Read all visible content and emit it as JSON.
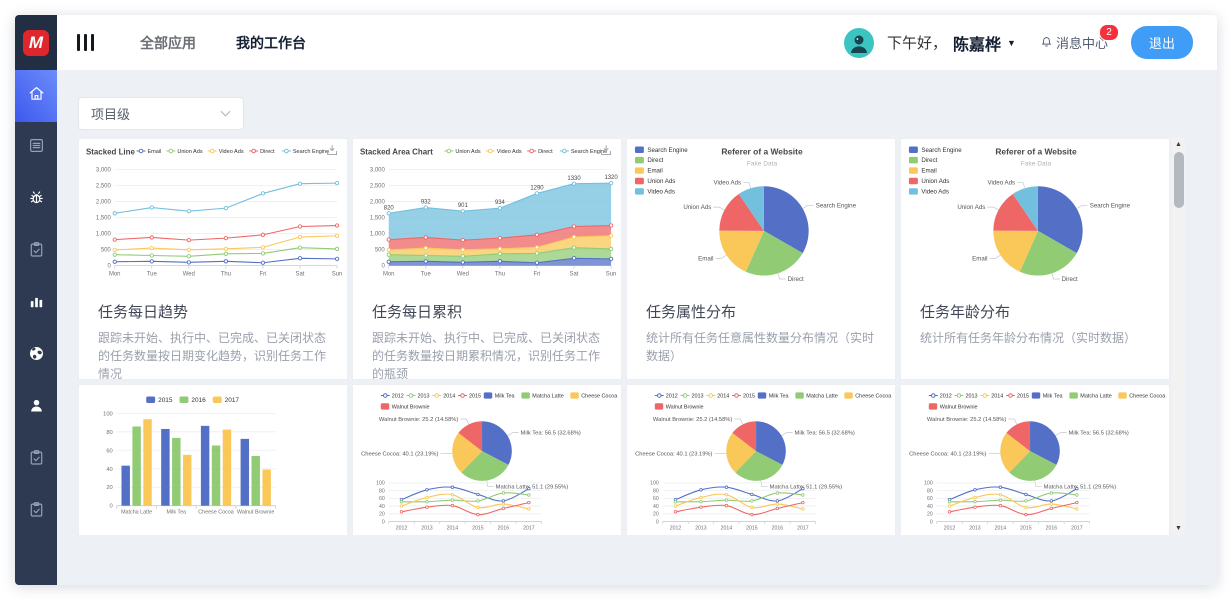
{
  "header": {
    "logo_text": "M",
    "nav": [
      {
        "label": "全部应用",
        "active": false
      },
      {
        "label": "我的工作台",
        "active": true
      }
    ],
    "greeting_prefix": "下午好，",
    "user_name": "陈嘉桦",
    "message_center_label": "消息中心",
    "message_badge": "2",
    "logout_label": "退出"
  },
  "sidebar": {
    "items": [
      {
        "icon": "home-icon",
        "active": true
      },
      {
        "icon": "document-icon"
      },
      {
        "icon": "bug-icon",
        "filled": true
      },
      {
        "icon": "clipboard-check-icon"
      },
      {
        "icon": "bar-chart-icon",
        "filled": true
      },
      {
        "icon": "globe-icon",
        "filled": true
      },
      {
        "icon": "user-icon",
        "filled": true
      },
      {
        "icon": "clipboard-check-icon"
      },
      {
        "icon": "clipboard-check-icon"
      }
    ]
  },
  "filter": {
    "value": "项目级"
  },
  "cards": [
    {
      "title": "任务每日趋势",
      "desc": "跟踪未开始、执行中、已完成、已关闭状态的任务数量按日期变化趋势，识别任务工作情况",
      "chart": 0
    },
    {
      "title": "任务每日累积",
      "desc": "跟踪未开始、执行中、已完成、已关闭状态的任务数量按日期累积情况，识别任务工作的瓶颈",
      "chart": 1
    },
    {
      "title": "任务属性分布",
      "desc": "统计所有任务任意属性数量分布情况（实时数据）",
      "chart": 2
    },
    {
      "title": "任务年龄分布",
      "desc": "统计所有任务年龄分布情况（实时数据）",
      "chart": 2
    },
    {
      "chart": 3
    },
    {
      "chart": 4
    },
    {
      "chart": 4
    },
    {
      "chart": 4
    }
  ],
  "chart_data": [
    {
      "id": "stacked-line",
      "type": "line",
      "title": "Stacked Line",
      "legend": [
        "Email",
        "Union Ads",
        "Video Ads",
        "Direct",
        "Search Engine"
      ],
      "legend_color_start": 0,
      "x": [
        "Mon",
        "Tue",
        "Wed",
        "Thu",
        "Fri",
        "Sat",
        "Sun"
      ],
      "series": [
        {
          "name": "Email",
          "values": [
            120,
            132,
            101,
            134,
            90,
            230,
            210
          ]
        },
        {
          "name": "Union Ads",
          "values": [
            220,
            182,
            191,
            234,
            290,
            330,
            310
          ]
        },
        {
          "name": "Video Ads",
          "values": [
            150,
            232,
            201,
            154,
            190,
            330,
            410
          ]
        },
        {
          "name": "Direct",
          "values": [
            320,
            332,
            301,
            334,
            390,
            330,
            320
          ]
        },
        {
          "name": "Search Engine",
          "values": [
            820,
            932,
            901,
            934,
            1290,
            1330,
            1320
          ]
        }
      ],
      "stacked": true,
      "ylim": [
        0,
        3000
      ],
      "ystep": 500,
      "grid": true,
      "has_save_icon": true
    },
    {
      "id": "stacked-area",
      "type": "area",
      "title": "Stacked Area Chart",
      "legend": [
        "Union Ads",
        "Video Ads",
        "Direct",
        "Search Engine"
      ],
      "legend_color_start": 1,
      "x": [
        "Mon",
        "Tue",
        "Wed",
        "Thu",
        "Fri",
        "Sat",
        "Sun"
      ],
      "series": [
        {
          "name": "Email",
          "values": [
            120,
            132,
            101,
            134,
            90,
            230,
            210
          ]
        },
        {
          "name": "Union Ads",
          "values": [
            220,
            182,
            191,
            234,
            290,
            330,
            310
          ]
        },
        {
          "name": "Video Ads",
          "values": [
            150,
            232,
            201,
            154,
            190,
            330,
            410
          ]
        },
        {
          "name": "Direct",
          "values": [
            320,
            332,
            301,
            334,
            390,
            330,
            320
          ]
        },
        {
          "name": "Search Engine",
          "values": [
            820,
            932,
            901,
            934,
            1290,
            1330,
            1320
          ]
        }
      ],
      "stacked": true,
      "ylim": [
        0,
        3000
      ],
      "ystep": 500,
      "grid": true,
      "top_labels": [
        "820",
        "932",
        "901",
        "934",
        "1290",
        "1330",
        "1320"
      ],
      "has_save_icon": true
    },
    {
      "id": "referer-pie",
      "type": "pie",
      "title": "Referer of a Website",
      "subtitle": "Fake Data",
      "legend": [
        "Search Engine",
        "Direct",
        "Email",
        "Union Ads",
        "Video Ads"
      ],
      "legend_position": "top-left",
      "data": [
        {
          "name": "Search Engine",
          "value": 1048
        },
        {
          "name": "Direct",
          "value": 735
        },
        {
          "name": "Email",
          "value": 580
        },
        {
          "name": "Union Ads",
          "value": 484
        },
        {
          "name": "Video Ads",
          "value": 300
        }
      ]
    },
    {
      "id": "yearly-bar",
      "type": "bar",
      "legend": [
        "2015",
        "2016",
        "2017"
      ],
      "categories": [
        "Matcha Latte",
        "Milk Tea",
        "Cheese Cocoa",
        "Walnut Brownie"
      ],
      "series": [
        {
          "name": "2015",
          "values": [
            43.3,
            83.1,
            86.4,
            72.4
          ]
        },
        {
          "name": "2016",
          "values": [
            85.8,
            73.4,
            65.2,
            53.9
          ]
        },
        {
          "name": "2017",
          "values": [
            93.7,
            55.1,
            82.5,
            39.1
          ]
        }
      ],
      "ylim": [
        0,
        100
      ],
      "ystep": 20,
      "grid": true,
      "legend_position": "top-center"
    },
    {
      "id": "share-dataset",
      "type": "pie-line",
      "legend_lines": [
        "2012",
        "2013",
        "2014",
        "2015"
      ],
      "legend_rects": [
        "Milk Tea",
        "Matcha Latte",
        "Cheese Cocoa",
        "Walnut Brownie"
      ],
      "x": [
        "2012",
        "2013",
        "2014",
        "2015",
        "2016",
        "2017"
      ],
      "series": [
        {
          "name": "Milk Tea",
          "values": [
            56.5,
            82.1,
            88.7,
            70.1,
            53.4,
            85.1
          ]
        },
        {
          "name": "Matcha Latte",
          "values": [
            51.1,
            51.4,
            55.1,
            53.3,
            73.8,
            68.7
          ]
        },
        {
          "name": "Cheese Cocoa",
          "values": [
            40.1,
            62.2,
            69.5,
            36.4,
            45.2,
            32.5
          ]
        },
        {
          "name": "Walnut Brownie",
          "values": [
            25.2,
            37.1,
            41.2,
            18,
            33.9,
            49.1
          ]
        }
      ],
      "pie": [
        {
          "name": "Milk Tea",
          "value": 56.5,
          "label": "Milk Tea: 56.5 (32.68%)"
        },
        {
          "name": "Matcha Latte",
          "value": 51.1,
          "label": "Matcha Latte: 51.1 (29.55%)"
        },
        {
          "name": "Cheese Cocoa",
          "value": 40.1,
          "label": "Cheese Cocoa: 40.1 (23.19%)"
        },
        {
          "name": "Walnut Brownie",
          "value": 25.2,
          "label": "Walnut Brownie: 25.2 (14.58%)"
        }
      ],
      "ylim": [
        0,
        100
      ],
      "ystep": 20,
      "grid": true
    }
  ],
  "colors": {
    "palette": [
      "#5470c6",
      "#91cc75",
      "#fac858",
      "#ee6666",
      "#73c0de"
    ],
    "accent_blue": "#3f9cf7",
    "badge_red": "#f5313d",
    "logo_red": "#e0262d",
    "avatar_teal": "#3cc5c0",
    "sidebar_bg": "#2d3a52",
    "sidebar_active_from": "#3d58ef",
    "sidebar_active_to": "#6c8dfa",
    "main_bg": "#edf0f5"
  },
  "scrollbar": {
    "up_glyph": "▲",
    "down_glyph": "▼"
  }
}
